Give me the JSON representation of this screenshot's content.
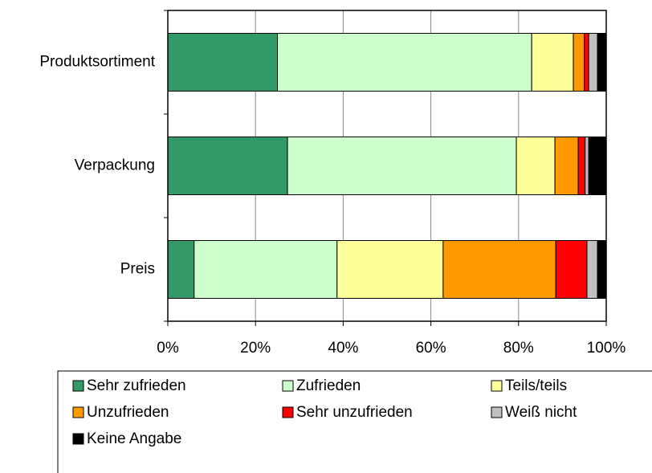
{
  "chart_data": {
    "type": "stacked_barh",
    "categories": [
      "Produktsortiment",
      "Verpackung",
      "Preis"
    ],
    "series": [
      {
        "name": "Sehr zufrieden",
        "color": "#339966",
        "values": [
          25,
          27.3,
          6
        ]
      },
      {
        "name": "Zufrieden",
        "color": "#ccffcc",
        "values": [
          58,
          52.2,
          32.6
        ]
      },
      {
        "name": "Teils/teils",
        "color": "#ffff99",
        "values": [
          9.5,
          8.8,
          24.2
        ]
      },
      {
        "name": "Unzufrieden",
        "color": "#ff9900",
        "values": [
          2.5,
          5.3,
          25.7
        ]
      },
      {
        "name": "Sehr unzufrieden",
        "color": "#ff0000",
        "values": [
          1,
          1.6,
          7.1
        ]
      },
      {
        "name": "Weiß nicht",
        "color": "#c0c0c0",
        "values": [
          2,
          0.8,
          2.4
        ]
      },
      {
        "name": "Keine Angabe",
        "color": "#000000",
        "values": [
          2,
          4,
          2
        ]
      }
    ],
    "xlim": [
      0,
      100
    ],
    "xticks": [
      {
        "value": 0,
        "label": "0%"
      },
      {
        "value": 20,
        "label": "20%"
      },
      {
        "value": 40,
        "label": "40%"
      },
      {
        "value": 60,
        "label": "60%"
      },
      {
        "value": 80,
        "label": "80%"
      },
      {
        "value": 100,
        "label": "100%"
      }
    ],
    "grid": true
  }
}
